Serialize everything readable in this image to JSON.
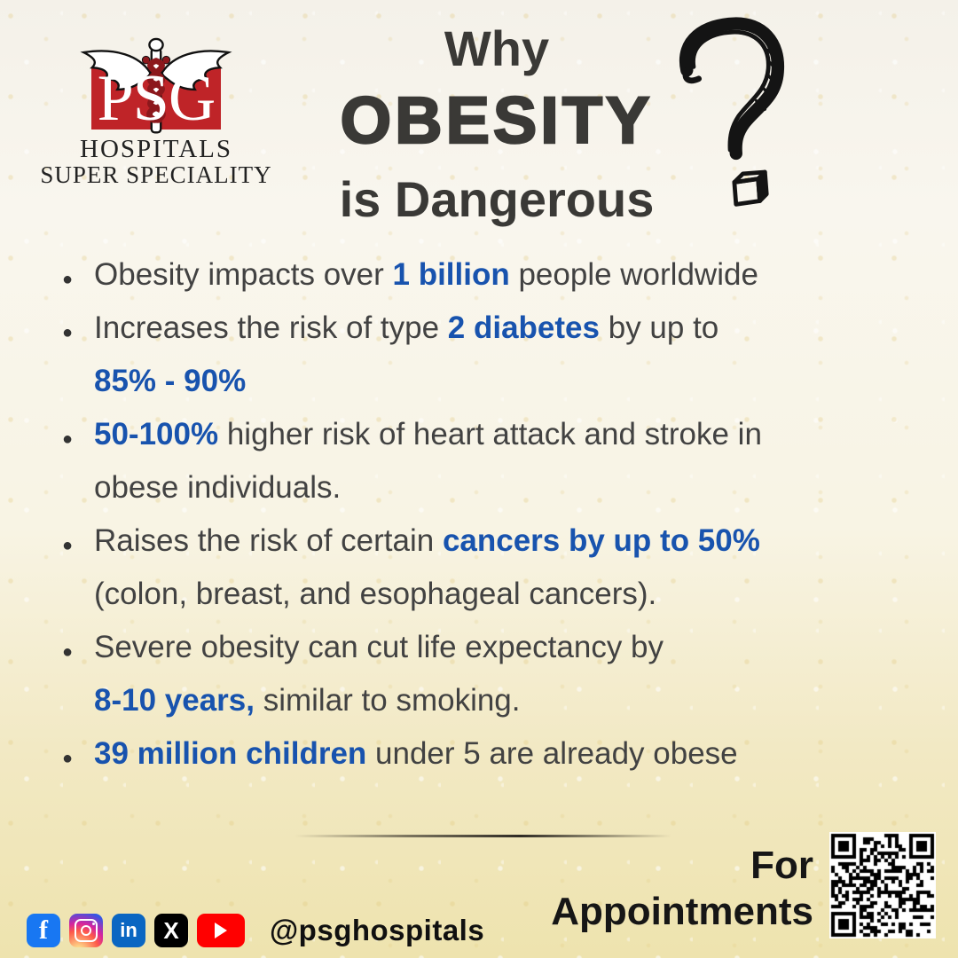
{
  "logo": {
    "psg": "PSG",
    "hospitals": "HOSPITALS",
    "super_speciality": "SUPER SPECIALITY"
  },
  "title": {
    "line1": "Why",
    "line2": "OBESITY",
    "line3": "is Dangerous"
  },
  "bullets": [
    {
      "bullet": true,
      "segments": [
        {
          "text": "Obesity impacts over ",
          "highlight": false
        },
        {
          "text": "1 billion",
          "highlight": true
        },
        {
          "text": " people worldwide",
          "highlight": false
        }
      ]
    },
    {
      "bullet": true,
      "segments": [
        {
          "text": "Increases the risk of type ",
          "highlight": false
        },
        {
          "text": "2 diabetes",
          "highlight": true
        },
        {
          "text": " by up to",
          "highlight": false
        }
      ]
    },
    {
      "bullet": false,
      "segments": [
        {
          "text": "85% - 90%",
          "highlight": true
        }
      ]
    },
    {
      "bullet": true,
      "segments": [
        {
          "text": "50-100%",
          "highlight": true
        },
        {
          "text": " higher risk of heart attack and stroke in",
          "highlight": false
        }
      ]
    },
    {
      "bullet": false,
      "segments": [
        {
          "text": "obese individuals.",
          "highlight": false
        }
      ]
    },
    {
      "bullet": true,
      "segments": [
        {
          "text": "Raises the risk of certain ",
          "highlight": false
        },
        {
          "text": "cancers by up to 50%",
          "highlight": true
        }
      ]
    },
    {
      "bullet": false,
      "segments": [
        {
          "text": "(colon, breast, and esophageal cancers).",
          "highlight": false
        }
      ]
    },
    {
      "bullet": true,
      "segments": [
        {
          "text": "Severe obesity can cut life expectancy by",
          "highlight": false
        }
      ]
    },
    {
      "bullet": false,
      "segments": [
        {
          "text": " 8-10 years,",
          "highlight": true
        },
        {
          "text": " similar to smoking.",
          "highlight": false
        }
      ]
    },
    {
      "bullet": true,
      "segments": [
        {
          "text": "39 million children",
          "highlight": true
        },
        {
          "text": " under 5 are already obese",
          "highlight": false
        }
      ]
    }
  ],
  "footer": {
    "for_label": "For",
    "appointments_label": "Appointments",
    "handle": "@psghospitals",
    "social_icons": [
      "facebook",
      "instagram",
      "linkedin",
      "x",
      "youtube"
    ],
    "facebook_glyph": "f",
    "linkedin_glyph": "in",
    "x_glyph": "X"
  },
  "colors": {
    "highlight_blue": "#1853ae",
    "logo_red": "#bf2428",
    "text_dark": "#424242",
    "title_dark": "#3a3936",
    "facebook": "#1877f2",
    "linkedin": "#0a66c2",
    "youtube": "#ff0000",
    "x_black": "#000000"
  }
}
